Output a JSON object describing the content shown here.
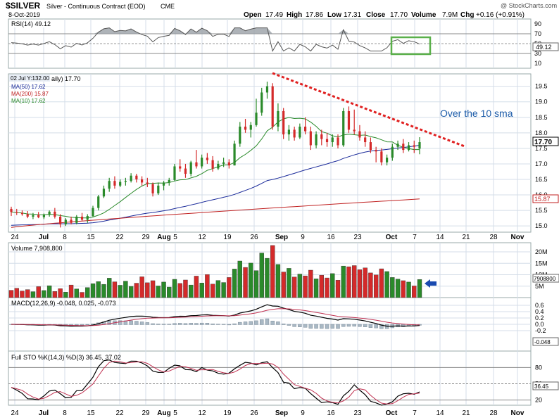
{
  "header": {
    "symbol": "$SILVER",
    "name": "Silver - Continuous Contract (EOD)",
    "exchange": "CME",
    "watermark": "@ StockCharts.com",
    "date": "8-Oct-2019",
    "open_label": "Open",
    "open": "17.49",
    "high_label": "High",
    "high": "17.86",
    "low_label": "Low",
    "low": "17.31",
    "close_label": "Close",
    "close": "17.70",
    "volume_label": "Volume",
    "volume": "7.9M",
    "chg_label": "Chg",
    "chg": "+0.16 (+0.91%)"
  },
  "colors": {
    "up": "#2a8a2a",
    "down": "#d42a2a",
    "ma50": "#1a2a9a",
    "ma200": "#c02020",
    "ma10": "#2a8a2a",
    "trend": "#e02020",
    "note": "#1a5aa8",
    "box": "#5ab04a",
    "arrow": "#1a4ab0",
    "grid": "#d4dde8",
    "rsi_fill": "#9aa0a6"
  },
  "chart_data": {
    "type": "candlestick",
    "x_ticks": [
      "24",
      "Jul",
      "8",
      "15",
      "22",
      "29",
      "Aug",
      "5",
      "12",
      "19",
      "26",
      "Sep",
      "9",
      "16",
      "23",
      "Oct",
      "7",
      "14",
      "21",
      "28",
      "Nov"
    ],
    "series": [
      {
        "o": 15.55,
        "h": 15.62,
        "l": 15.32,
        "c": 15.45
      },
      {
        "o": 15.45,
        "h": 15.55,
        "l": 15.35,
        "c": 15.42
      },
      {
        "o": 15.42,
        "h": 15.5,
        "l": 15.33,
        "c": 15.38
      },
      {
        "o": 15.38,
        "h": 15.48,
        "l": 15.25,
        "c": 15.3
      },
      {
        "o": 15.3,
        "h": 15.42,
        "l": 15.22,
        "c": 15.35
      },
      {
        "o": 15.35,
        "h": 15.45,
        "l": 15.25,
        "c": 15.28
      },
      {
        "o": 15.28,
        "h": 15.4,
        "l": 15.22,
        "c": 15.36
      },
      {
        "o": 15.36,
        "h": 15.5,
        "l": 15.3,
        "c": 15.46
      },
      {
        "o": 15.46,
        "h": 15.58,
        "l": 15.24,
        "c": 15.3
      },
      {
        "o": 15.3,
        "h": 15.38,
        "l": 14.95,
        "c": 15.05
      },
      {
        "o": 15.05,
        "h": 15.25,
        "l": 15.0,
        "c": 15.2
      },
      {
        "o": 15.2,
        "h": 15.3,
        "l": 15.05,
        "c": 15.1
      },
      {
        "o": 15.1,
        "h": 15.35,
        "l": 15.05,
        "c": 15.3
      },
      {
        "o": 15.3,
        "h": 15.42,
        "l": 15.15,
        "c": 15.2
      },
      {
        "o": 15.2,
        "h": 15.38,
        "l": 15.1,
        "c": 15.32
      },
      {
        "o": 15.32,
        "h": 15.65,
        "l": 15.28,
        "c": 15.58
      },
      {
        "o": 15.58,
        "h": 16.0,
        "l": 15.5,
        "c": 15.95
      },
      {
        "o": 15.95,
        "h": 16.3,
        "l": 15.9,
        "c": 16.2
      },
      {
        "o": 16.2,
        "h": 16.55,
        "l": 16.1,
        "c": 16.45
      },
      {
        "o": 16.45,
        "h": 16.6,
        "l": 16.2,
        "c": 16.3
      },
      {
        "o": 16.3,
        "h": 16.5,
        "l": 16.25,
        "c": 16.42
      },
      {
        "o": 16.42,
        "h": 16.55,
        "l": 16.3,
        "c": 16.45
      },
      {
        "o": 16.45,
        "h": 16.7,
        "l": 16.4,
        "c": 16.62
      },
      {
        "o": 16.62,
        "h": 16.68,
        "l": 16.4,
        "c": 16.5
      },
      {
        "o": 16.5,
        "h": 16.6,
        "l": 16.3,
        "c": 16.4
      },
      {
        "o": 16.4,
        "h": 16.55,
        "l": 16.25,
        "c": 16.35
      },
      {
        "o": 16.35,
        "h": 16.4,
        "l": 15.95,
        "c": 16.05
      },
      {
        "o": 16.05,
        "h": 16.4,
        "l": 16.0,
        "c": 16.3
      },
      {
        "o": 16.3,
        "h": 16.45,
        "l": 16.15,
        "c": 16.4
      },
      {
        "o": 16.4,
        "h": 16.55,
        "l": 16.3,
        "c": 16.48
      },
      {
        "o": 16.48,
        "h": 17.0,
        "l": 16.45,
        "c": 16.92
      },
      {
        "o": 16.92,
        "h": 17.15,
        "l": 16.75,
        "c": 16.85
      },
      {
        "o": 16.85,
        "h": 17.0,
        "l": 16.55,
        "c": 16.68
      },
      {
        "o": 16.68,
        "h": 17.1,
        "l": 16.6,
        "c": 17.05
      },
      {
        "o": 17.05,
        "h": 17.45,
        "l": 16.85,
        "c": 16.92
      },
      {
        "o": 16.92,
        "h": 17.3,
        "l": 16.85,
        "c": 17.2
      },
      {
        "o": 17.2,
        "h": 17.35,
        "l": 17.0,
        "c": 17.12
      },
      {
        "o": 17.12,
        "h": 17.25,
        "l": 16.75,
        "c": 16.85
      },
      {
        "o": 16.85,
        "h": 17.1,
        "l": 16.8,
        "c": 17.0
      },
      {
        "o": 17.0,
        "h": 17.2,
        "l": 16.9,
        "c": 17.05
      },
      {
        "o": 17.05,
        "h": 17.15,
        "l": 16.85,
        "c": 16.95
      },
      {
        "o": 16.95,
        "h": 17.75,
        "l": 16.95,
        "c": 17.65
      },
      {
        "o": 17.65,
        "h": 18.35,
        "l": 17.55,
        "c": 18.2
      },
      {
        "o": 18.2,
        "h": 18.45,
        "l": 18.0,
        "c": 18.1
      },
      {
        "o": 18.1,
        "h": 18.35,
        "l": 17.85,
        "c": 18.25
      },
      {
        "o": 18.25,
        "h": 19.1,
        "l": 18.2,
        "c": 18.65
      },
      {
        "o": 18.65,
        "h": 19.45,
        "l": 18.55,
        "c": 19.3
      },
      {
        "o": 19.3,
        "h": 19.65,
        "l": 19.1,
        "c": 19.5
      },
      {
        "o": 19.5,
        "h": 19.6,
        "l": 18.1,
        "c": 18.2
      },
      {
        "o": 18.2,
        "h": 18.95,
        "l": 18.05,
        "c": 18.7
      },
      {
        "o": 18.7,
        "h": 18.8,
        "l": 17.8,
        "c": 17.95
      },
      {
        "o": 17.95,
        "h": 18.25,
        "l": 17.75,
        "c": 18.1
      },
      {
        "o": 18.1,
        "h": 18.2,
        "l": 17.75,
        "c": 17.85
      },
      {
        "o": 17.85,
        "h": 18.3,
        "l": 17.8,
        "c": 18.2
      },
      {
        "o": 18.2,
        "h": 18.5,
        "l": 17.95,
        "c": 18.05
      },
      {
        "o": 18.05,
        "h": 18.2,
        "l": 17.45,
        "c": 17.6
      },
      {
        "o": 17.6,
        "h": 18.05,
        "l": 17.5,
        "c": 17.95
      },
      {
        "o": 17.95,
        "h": 18.1,
        "l": 17.6,
        "c": 17.8
      },
      {
        "o": 17.8,
        "h": 18.0,
        "l": 17.55,
        "c": 17.7
      },
      {
        "o": 17.7,
        "h": 17.95,
        "l": 17.55,
        "c": 17.85
      },
      {
        "o": 17.85,
        "h": 17.95,
        "l": 17.5,
        "c": 17.6
      },
      {
        "o": 17.6,
        "h": 18.8,
        "l": 17.55,
        "c": 18.7
      },
      {
        "o": 18.7,
        "h": 18.85,
        "l": 18.0,
        "c": 18.1
      },
      {
        "o": 18.1,
        "h": 18.75,
        "l": 17.95,
        "c": 18.05
      },
      {
        "o": 18.05,
        "h": 18.25,
        "l": 17.75,
        "c": 17.85
      },
      {
        "o": 17.85,
        "h": 18.05,
        "l": 17.55,
        "c": 17.7
      },
      {
        "o": 17.7,
        "h": 17.85,
        "l": 17.35,
        "c": 17.45
      },
      {
        "o": 17.45,
        "h": 17.55,
        "l": 17.05,
        "c": 17.4
      },
      {
        "o": 17.4,
        "h": 17.5,
        "l": 16.95,
        "c": 17.05
      },
      {
        "o": 17.05,
        "h": 17.3,
        "l": 16.95,
        "c": 17.2
      },
      {
        "o": 17.2,
        "h": 17.65,
        "l": 17.1,
        "c": 17.55
      },
      {
        "o": 17.55,
        "h": 17.75,
        "l": 17.45,
        "c": 17.65
      },
      {
        "o": 17.65,
        "h": 17.8,
        "l": 17.35,
        "c": 17.45
      },
      {
        "o": 17.45,
        "h": 17.7,
        "l": 17.4,
        "c": 17.6
      },
      {
        "o": 17.6,
        "h": 17.75,
        "l": 17.35,
        "c": 17.55
      },
      {
        "o": 17.49,
        "h": 17.86,
        "l": 17.31,
        "c": 17.7
      }
    ],
    "volume": [
      3.2,
      4.1,
      2.9,
      3.5,
      2.6,
      4.8,
      3.1,
      5.2,
      2.7,
      3.9,
      2.4,
      5.5,
      3.8,
      2.3,
      4.4,
      6.1,
      7.0,
      5.8,
      8.5,
      6.9,
      5.4,
      7.2,
      4.9,
      6.3,
      9.1,
      6.5,
      7.4,
      5.1,
      6.8,
      4.6,
      8.0,
      6.2,
      7.7,
      5.5,
      9.4,
      6.4,
      10.1,
      5.9,
      7.5,
      6.6,
      8.8,
      12.5,
      16.0,
      13.2,
      15.1,
      11.8,
      19.5,
      17.2,
      22.8,
      14.5,
      11.2,
      12.8,
      9.0,
      10.3,
      9.5,
      12.0,
      8.2,
      9.8,
      8.6,
      10.5,
      7.6,
      13.8,
      13.5,
      14.0,
      12.2,
      13.0,
      10.8,
      9.9,
      12.6,
      11.4,
      8.8,
      8.1,
      7.4,
      6.8,
      5.1,
      7.9
    ],
    "price_axis": {
      "min": 14.8,
      "max": 19.9,
      "ticks": [
        "19.5",
        "19.0",
        "18.5",
        "18.0",
        "17.5",
        "17.0",
        "16.5",
        "16.0",
        "15.5",
        "15.0"
      ]
    },
    "price_label": {
      "value": "17.70",
      "tag": "15.87"
    },
    "title_tag": "02 Jul Y:132.00",
    "legend_main": "aily) 17.70",
    "ma50_label": "MA(50) 17.62",
    "ma200_label": "MA(200) 15.87",
    "ma10_label": "MA(10) 17.62",
    "annotation": "Over the 10 sma",
    "rsi": {
      "label": "RSI(14) 49.12",
      "value_tag": "49.12",
      "ticks": [
        "90",
        "70",
        "50",
        "30",
        "10"
      ]
    },
    "volume_panel": {
      "label": "Volume 7,908,800",
      "value_tag": "7908800",
      "ticks": [
        "20M",
        "15M",
        "10M",
        "5M"
      ]
    },
    "macd": {
      "label": "MACD(12,26,9) -0.048, 0.025, -0.073",
      "value_tag": "-0.048",
      "ticks": [
        "0.6",
        "0.4",
        "0.2",
        "0.0",
        "-0.2"
      ]
    },
    "sto": {
      "label": "Full STO %K(14,3) %D(3) 36.45, 37.02",
      "value_tag": "36.45",
      "ticks": [
        "80",
        "50",
        "20"
      ]
    }
  }
}
